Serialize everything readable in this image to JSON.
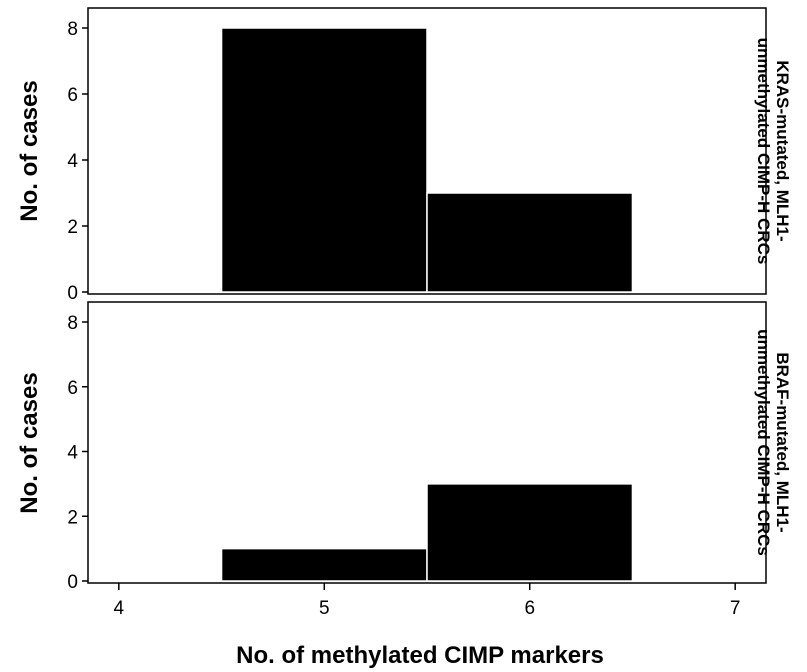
{
  "chart_data": {
    "type": "bar",
    "xlabel": "No. of methylated CIMP markers",
    "ylabel": "No. of cases",
    "x_ticks": [
      "4",
      "5",
      "6",
      "7"
    ],
    "xlim": [
      3.85,
      7.15
    ],
    "ylim": [
      0,
      8.2
    ],
    "y_ticks": [
      "0",
      "2",
      "4",
      "6",
      "8"
    ],
    "bin_width": 1,
    "panels": [
      {
        "strip_label": [
          "KRAS-mutated, MLH1-",
          "unmethylated CIMP-H CRCs"
        ],
        "bins": [
          {
            "x": 5,
            "value": 8
          },
          {
            "x": 6,
            "value": 3
          }
        ]
      },
      {
        "strip_label": [
          "BRAF-mutated, MLH1-",
          "unmethylated CIMP-H CRCs"
        ],
        "bins": [
          {
            "x": 5,
            "value": 1
          },
          {
            "x": 6,
            "value": 3
          }
        ]
      }
    ]
  }
}
